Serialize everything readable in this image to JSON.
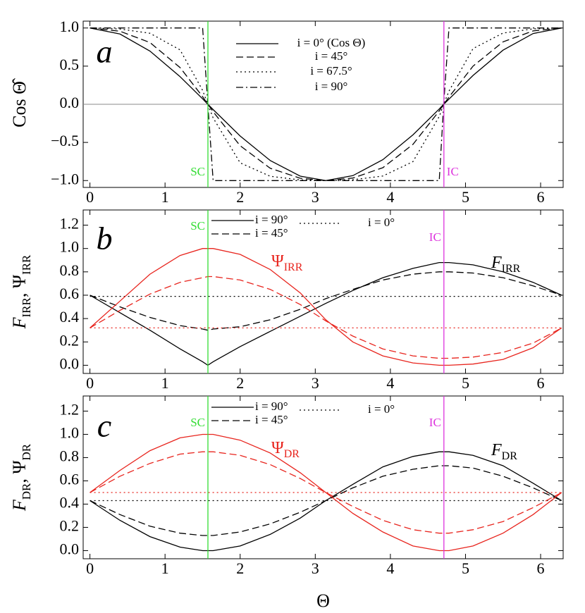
{
  "chart_data": [
    {
      "type": "line",
      "panel_label": "a",
      "ylabel": "Cos Θ̂",
      "x": [
        0,
        0.4,
        0.8,
        1.2,
        1.5,
        1.57,
        1.64,
        2.0,
        2.4,
        2.8,
        3.14,
        3.5,
        3.9,
        4.3,
        4.65,
        4.71,
        4.78,
        5.1,
        5.5,
        5.9,
        6.28
      ],
      "series": [
        {
          "name": "i = 0° (Cos Θ)",
          "color": "#000000",
          "dash": "solid",
          "values": [
            1,
            0.921,
            0.697,
            0.362,
            0.071,
            0,
            -0.069,
            -0.416,
            -0.737,
            -0.942,
            -1,
            -0.936,
            -0.726,
            -0.401,
            -0.062,
            0,
            0.067,
            0.378,
            0.709,
            0.927,
            1
          ]
        },
        {
          "name": "i = 45°",
          "color": "#000000",
          "dash": "dashed",
          "values": [
            1,
            0.958,
            0.809,
            0.481,
            0.1,
            0,
            -0.097,
            -0.543,
            -0.839,
            -0.97,
            -1,
            -0.967,
            -0.831,
            -0.526,
            -0.088,
            0,
            0.094,
            0.5,
            0.818,
            0.962,
            1
          ]
        },
        {
          "name": "i = 67.5°",
          "color": "#000000",
          "dash": "dotted",
          "values": [
            1,
            0.987,
            0.931,
            0.713,
            0.182,
            0,
            -0.178,
            -0.768,
            -0.944,
            -0.991,
            -1,
            -0.989,
            -0.94,
            -0.752,
            -0.16,
            0,
            0.173,
            0.73,
            0.934,
            0.988,
            1
          ]
        },
        {
          "name": "i = 90°",
          "color": "#000000",
          "dash": "dashdot",
          "values": [
            1,
            1,
            1,
            1,
            1,
            0,
            -1,
            -1,
            -1,
            -1,
            -1,
            -1,
            -1,
            -1,
            -1,
            0,
            1,
            1,
            1,
            1,
            1
          ]
        }
      ],
      "xlim": [
        -0.09,
        6.3
      ],
      "ylim": [
        -1.09,
        1.09
      ],
      "xticks": [
        0,
        1,
        2,
        3,
        4,
        5,
        6
      ],
      "yticks": [
        {
          "value": -1,
          "label": "−1.0"
        },
        {
          "value": -0.5,
          "label": "−0.5"
        },
        {
          "value": 0,
          "label": "0.0"
        },
        {
          "value": 0.5,
          "label": "0.5"
        },
        {
          "value": 1,
          "label": "1.0"
        }
      ],
      "hlines": [
        0
      ],
      "vlines": [
        {
          "x": 1.5708,
          "label": "SC",
          "color": "#33dd33"
        },
        {
          "x": 4.7124,
          "label": "IC",
          "color": "#dd33dd"
        }
      ]
    },
    {
      "type": "line",
      "panel_label": "b",
      "ylabel": [
        "F",
        "IRR",
        ", Ψ",
        "IRR"
      ],
      "x": [
        0,
        0.4,
        0.8,
        1.2,
        1.5,
        1.57,
        1.64,
        2.0,
        2.4,
        2.8,
        3.14,
        3.5,
        3.9,
        4.3,
        4.65,
        4.71,
        4.78,
        5.1,
        5.5,
        5.9,
        6.28
      ],
      "series": [
        {
          "name": "i = 90°",
          "color": "#000000",
          "dash": "solid",
          "values": [
            0.6,
            0.45,
            0.3,
            0.14,
            0.03,
            0,
            0.03,
            0.16,
            0.29,
            0.42,
            0.53,
            0.64,
            0.75,
            0.83,
            0.88,
            0.88,
            0.88,
            0.86,
            0.8,
            0.71,
            0.6
          ]
        },
        {
          "name": "i = 45°",
          "color": "#000000",
          "dash": "dashed",
          "values": [
            0.6,
            0.5,
            0.41,
            0.34,
            0.31,
            0.3,
            0.31,
            0.33,
            0.39,
            0.48,
            0.57,
            0.65,
            0.73,
            0.78,
            0.8,
            0.8,
            0.8,
            0.79,
            0.75,
            0.68,
            0.6
          ]
        },
        {
          "name": "i = 0°",
          "color": "#000000",
          "dash": "dotted",
          "values": [
            0.59,
            0.59,
            0.59,
            0.59,
            0.59,
            0.59,
            0.59,
            0.59,
            0.59,
            0.59,
            0.59,
            0.59,
            0.59,
            0.59,
            0.59,
            0.59,
            0.59,
            0.59,
            0.59,
            0.59,
            0.59
          ]
        },
        {
          "color": "#e8251e",
          "dash": "solid",
          "values": [
            0.32,
            0.55,
            0.78,
            0.94,
            1.0,
            1.0,
            1.0,
            0.95,
            0.82,
            0.62,
            0.39,
            0.2,
            0.08,
            0.02,
            0,
            0,
            0,
            0.01,
            0.05,
            0.15,
            0.32
          ]
        },
        {
          "color": "#e8251e",
          "dash": "dashed",
          "values": [
            0.32,
            0.47,
            0.61,
            0.71,
            0.75,
            0.76,
            0.76,
            0.73,
            0.65,
            0.52,
            0.38,
            0.25,
            0.14,
            0.08,
            0.06,
            0.06,
            0.06,
            0.07,
            0.11,
            0.19,
            0.32
          ]
        },
        {
          "color": "#e8251e",
          "dash": "dotted",
          "values": [
            0.32,
            0.32,
            0.32,
            0.32,
            0.32,
            0.32,
            0.32,
            0.32,
            0.32,
            0.32,
            0.32,
            0.32,
            0.32,
            0.32,
            0.32,
            0.32,
            0.32,
            0.32,
            0.32,
            0.32,
            0.32
          ]
        }
      ],
      "xlim": [
        -0.09,
        6.3
      ],
      "ylim": [
        -0.07,
        1.33
      ],
      "xticks": [
        0,
        1,
        2,
        3,
        4,
        5,
        6
      ],
      "yticks": [
        {
          "value": 0,
          "label": "0.0"
        },
        0.2,
        0.4,
        0.6,
        0.8,
        {
          "value": 1,
          "label": "1.0"
        },
        1.2
      ],
      "annotations": [
        {
          "text": [
            "Ψ",
            "IRR"
          ],
          "color": "#e8251e"
        },
        {
          "text": [
            "F",
            "IRR"
          ],
          "color": "#000000"
        }
      ],
      "vlines": [
        {
          "x": 1.5708,
          "label": "SC",
          "color": "#33dd33"
        },
        {
          "x": 4.7124,
          "label": "IC",
          "color": "#dd33dd"
        }
      ]
    },
    {
      "type": "line",
      "panel_label": "c",
      "ylabel": [
        "F",
        "DR",
        ", Ψ",
        "DR"
      ],
      "xlabel": "Θ",
      "x": [
        0,
        0.4,
        0.8,
        1.2,
        1.5,
        1.57,
        1.64,
        2.0,
        2.4,
        2.8,
        3.14,
        3.5,
        3.9,
        4.3,
        4.65,
        4.71,
        4.78,
        5.1,
        5.5,
        5.9,
        6.28
      ],
      "series": [
        {
          "name": "i = 90°",
          "color": "#000000",
          "dash": "solid",
          "values": [
            0.43,
            0.26,
            0.12,
            0.03,
            0,
            0,
            0,
            0.04,
            0.14,
            0.28,
            0.43,
            0.57,
            0.72,
            0.81,
            0.85,
            0.85,
            0.85,
            0.82,
            0.73,
            0.58,
            0.43
          ]
        },
        {
          "name": "i = 45°",
          "color": "#000000",
          "dash": "dashed",
          "values": [
            0.43,
            0.31,
            0.21,
            0.15,
            0.13,
            0.13,
            0.13,
            0.16,
            0.23,
            0.33,
            0.43,
            0.54,
            0.64,
            0.7,
            0.73,
            0.73,
            0.73,
            0.71,
            0.64,
            0.54,
            0.43
          ]
        },
        {
          "name": "i = 0°",
          "color": "#000000",
          "dash": "dotted",
          "values": [
            0.43,
            0.43,
            0.43,
            0.43,
            0.43,
            0.43,
            0.43,
            0.43,
            0.43,
            0.43,
            0.43,
            0.43,
            0.43,
            0.43,
            0.43,
            0.43,
            0.43,
            0.43,
            0.43,
            0.43,
            0.43
          ]
        },
        {
          "color": "#e8251e",
          "dash": "solid",
          "values": [
            0.5,
            0.69,
            0.86,
            0.97,
            1.0,
            1.0,
            1.0,
            0.95,
            0.84,
            0.67,
            0.5,
            0.32,
            0.16,
            0.04,
            0,
            0,
            0,
            0.04,
            0.15,
            0.31,
            0.5
          ]
        },
        {
          "color": "#e8251e",
          "dash": "dashed",
          "values": [
            0.5,
            0.64,
            0.75,
            0.83,
            0.85,
            0.85,
            0.85,
            0.82,
            0.74,
            0.62,
            0.5,
            0.38,
            0.26,
            0.18,
            0.15,
            0.15,
            0.15,
            0.18,
            0.25,
            0.37,
            0.5
          ]
        },
        {
          "color": "#e8251e",
          "dash": "dotted",
          "values": [
            0.5,
            0.5,
            0.5,
            0.5,
            0.5,
            0.5,
            0.5,
            0.5,
            0.5,
            0.5,
            0.5,
            0.5,
            0.5,
            0.5,
            0.5,
            0.5,
            0.5,
            0.5,
            0.5,
            0.5,
            0.5
          ]
        }
      ],
      "xlim": [
        -0.09,
        6.3
      ],
      "ylim": [
        -0.07,
        1.33
      ],
      "xticks": [
        0,
        1,
        2,
        3,
        4,
        5,
        6
      ],
      "yticks": [
        {
          "value": 0,
          "label": "0.0"
        },
        0.2,
        0.4,
        0.6,
        0.8,
        {
          "value": 1,
          "label": "1.0"
        },
        1.2
      ],
      "annotations": [
        {
          "text": [
            "Ψ",
            "DR"
          ],
          "color": "#e8251e"
        },
        {
          "text": [
            "F",
            "DR"
          ],
          "color": "#000000"
        }
      ],
      "vlines": [
        {
          "x": 1.5708,
          "label": "SC",
          "color": "#33dd33"
        },
        {
          "x": 4.7124,
          "label": "IC",
          "color": "#dd33dd"
        }
      ]
    }
  ]
}
